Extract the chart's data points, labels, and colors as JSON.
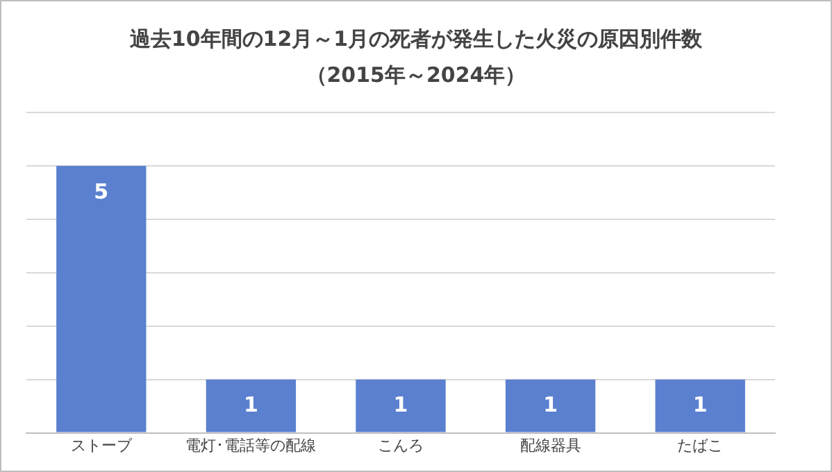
{
  "chart_data": {
    "type": "bar",
    "title": "過去10年間の12月～1月の死者が発生した火災の原因別件数",
    "subtitle": "（2015年～2024年）",
    "categories": [
      "ストーブ",
      "電灯･電話等の配線",
      "こんろ",
      "配線器具",
      "たばこ"
    ],
    "values": [
      5,
      1,
      1,
      1,
      1
    ],
    "color": "#5b80d0",
    "ylim": [
      0,
      6
    ],
    "yticks": [
      {
        "value": 0,
        "label": null
      },
      {
        "value": 1,
        "label": null
      },
      {
        "value": 2,
        "label": null
      },
      {
        "value": 3,
        "label": null
      },
      {
        "value": 4,
        "label": null
      },
      {
        "value": 5,
        "label": null
      },
      {
        "value": 6,
        "label": null
      }
    ],
    "tick_labels": "x",
    "grid": "y",
    "data_labels": true,
    "legend": false
  }
}
